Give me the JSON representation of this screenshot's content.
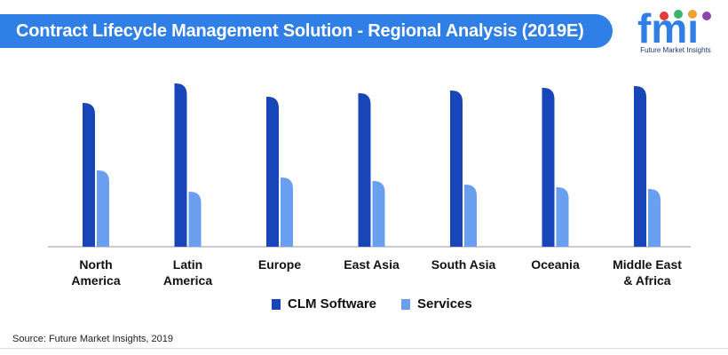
{
  "header": {
    "title": "Contract Lifecycle Management Solution - Regional Analysis (2019E)"
  },
  "logo": {
    "letters": "fmi",
    "caption": "Future Market Insights",
    "colors": {
      "letters": "#2f7fe6",
      "dots": [
        "#e63b3b",
        "#3cb371",
        "#f0a030",
        "#8e44ad"
      ]
    }
  },
  "chart_data": {
    "type": "bar",
    "title": "Contract Lifecycle Management Solution - Regional Analysis (2019E)",
    "categories": [
      [
        "North",
        "America"
      ],
      [
        "Latin",
        "America"
      ],
      [
        "Europe"
      ],
      [
        "East Asia"
      ],
      [
        "South Asia"
      ],
      [
        "Oceania"
      ],
      [
        "Middle East",
        "& Africa"
      ]
    ],
    "series": [
      {
        "name": "CLM Software",
        "color": "#1846b8",
        "values": [
          162,
          184,
          169,
          173,
          176,
          179,
          181
        ]
      },
      {
        "name": "Services",
        "color": "#6a9ff0",
        "values": [
          86,
          62,
          78,
          74,
          70,
          67,
          65
        ]
      }
    ],
    "ylim": [
      0,
      200
    ],
    "grid": false,
    "legend": "bottom-center"
  },
  "footer": {
    "source": "Source: Future Market Insights, 2019"
  }
}
